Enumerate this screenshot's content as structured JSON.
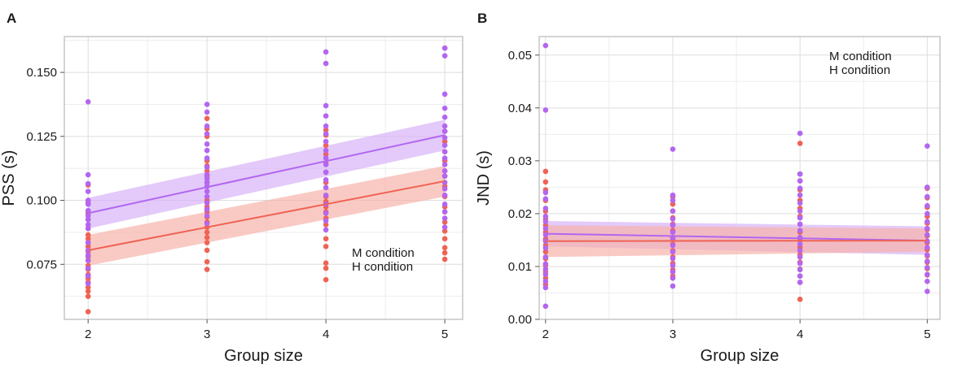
{
  "colors": {
    "m_condition": "#b366f0",
    "h_condition": "#ef6354",
    "m_band": "#d7b4f8",
    "h_band": "#f6b3ab",
    "grid": "#dedede",
    "axis": "#b8b8b8",
    "text": "#1a1a1a"
  },
  "chart_data": [
    {
      "panel_label": "A",
      "type": "scatter",
      "title": "",
      "xlabel": "Group size",
      "ylabel": "PSS (s)",
      "x_ticks": [
        2,
        3,
        4,
        5
      ],
      "y_ticks": [
        0.075,
        0.1,
        0.125,
        0.15
      ],
      "y_tick_labels": [
        "0.075",
        "0.100",
        "0.125",
        "0.150"
      ],
      "xlim": [
        1.8,
        5.15
      ],
      "ylim": [
        0.0535,
        0.164
      ],
      "legend": {
        "position": "bottom-right",
        "entries": [
          "M condition",
          "H condition"
        ]
      },
      "series": [
        {
          "name": "M condition",
          "fit": {
            "x": [
              2,
              5
            ],
            "y": [
              0.095,
              0.1255
            ]
          },
          "ci_low": [
            0.089,
            0.1195
          ],
          "ci_high": [
            0.101,
            0.1315
          ],
          "points": [
            {
              "x": 2,
              "y": [
                0.1385,
                0.11,
                0.1065,
                0.1035,
                0.1,
                0.0985,
                0.096,
                0.094,
                0.0925,
                0.0905,
                0.089,
                0.0835,
                0.0805,
                0.0785,
                0.0765,
                0.0735,
                0.0705,
                0.0675
              ]
            },
            {
              "x": 3,
              "y": [
                0.1375,
                0.1345,
                0.129,
                0.126,
                0.122,
                0.1195,
                0.1165,
                0.113,
                0.11,
                0.1085,
                0.107,
                0.1055,
                0.1035,
                0.1015,
                0.099,
                0.0965,
                0.094,
                0.091
              ]
            },
            {
              "x": 4,
              "y": [
                0.158,
                0.1535,
                0.137,
                0.133,
                0.129,
                0.126,
                0.123,
                0.1195,
                0.1165,
                0.114,
                0.111,
                0.108,
                0.105,
                0.102,
                0.0985,
                0.095,
                0.092,
                0.0885
              ]
            },
            {
              "x": 5,
              "y": [
                0.1595,
                0.1565,
                0.1415,
                0.136,
                0.1325,
                0.129,
                0.127,
                0.1245,
                0.1215,
                0.119,
                0.1165,
                0.114,
                0.1115,
                0.1095,
                0.107,
                0.1045,
                0.102,
                0.0985,
                0.0955,
                0.093,
                0.0895
              ]
            }
          ]
        },
        {
          "name": "H condition",
          "fit": {
            "x": [
              2,
              5
            ],
            "y": [
              0.0805,
              0.1075
            ]
          },
          "ci_low": [
            0.0745,
            0.1015
          ],
          "ci_high": [
            0.0865,
            0.1135
          ],
          "points": [
            {
              "x": 2,
              "y": [
                0.106,
                0.099,
                0.095,
                0.0925,
                0.089,
                0.0865,
                0.085,
                0.0835,
                0.082,
                0.08,
                0.078,
                0.0765,
                0.0745,
                0.073,
                0.071,
                0.0695,
                0.068,
                0.066,
                0.0645,
                0.0625,
                0.0565
              ]
            },
            {
              "x": 3,
              "y": [
                0.132,
                0.128,
                0.125,
                0.1155,
                0.1135,
                0.1115,
                0.1095,
                0.107,
                0.1,
                0.0975,
                0.0955,
                0.0935,
                0.0915,
                0.0895,
                0.0875,
                0.0855,
                0.0835,
                0.0805,
                0.076,
                0.073
              ]
            },
            {
              "x": 4,
              "y": [
                0.1275,
                0.1255,
                0.1215,
                0.118,
                0.1145,
                0.111,
                0.107,
                0.1015,
                0.0995,
                0.0975,
                0.0955,
                0.093,
                0.0905,
                0.085,
                0.082,
                0.0755,
                0.0735,
                0.069
              ]
            },
            {
              "x": 5,
              "y": [
                0.1595,
                0.127,
                0.123,
                0.119,
                0.1155,
                0.1115,
                0.1095,
                0.1055,
                0.1015,
                0.0975,
                0.0955,
                0.0915,
                0.088,
                0.085,
                0.0815,
                0.0795,
                0.077
              ]
            }
          ]
        }
      ]
    },
    {
      "panel_label": "B",
      "type": "scatter",
      "title": "",
      "xlabel": "Group size",
      "ylabel": "JND (s)",
      "x_ticks": [
        2,
        3,
        4,
        5
      ],
      "y_ticks": [
        0.0,
        0.01,
        0.02,
        0.03,
        0.04,
        0.05
      ],
      "y_tick_labels": [
        "0.00",
        "0.01",
        "0.02",
        "0.03",
        "0.04",
        "0.05"
      ],
      "xlim": [
        1.95,
        5.1
      ],
      "ylim": [
        0.0,
        0.0535
      ],
      "legend": {
        "position": "top-right",
        "entries": [
          "M condition",
          "H condition"
        ]
      },
      "series": [
        {
          "name": "M condition",
          "fit": {
            "x": [
              2,
              5
            ],
            "y": [
              0.0162,
              0.0149
            ]
          },
          "ci_low": [
            0.0138,
            0.0122
          ],
          "ci_high": [
            0.0186,
            0.0176
          ],
          "points": [
            {
              "x": 2,
              "y": [
                0.0518,
                0.0396,
                0.024,
                0.0228,
                0.021,
                0.0195,
                0.0185,
                0.0172,
                0.016,
                0.0148,
                0.0135,
                0.0118,
                0.0105,
                0.0095,
                0.0085,
                0.0072,
                0.006,
                0.0025
              ]
            },
            {
              "x": 3,
              "y": [
                0.0322,
                0.0235,
                0.0225,
                0.0205,
                0.019,
                0.0178,
                0.0165,
                0.0152,
                0.014,
                0.0128,
                0.0115,
                0.0102,
                0.009,
                0.0078,
                0.0063
              ]
            },
            {
              "x": 4,
              "y": [
                0.0352,
                0.0275,
                0.0262,
                0.0248,
                0.0235,
                0.022,
                0.0205,
                0.0192,
                0.018,
                0.0168,
                0.0155,
                0.0142,
                0.013,
                0.0118,
                0.0106,
                0.0094,
                0.0082,
                0.007
              ]
            },
            {
              "x": 5,
              "y": [
                0.0328,
                0.025,
                0.0232,
                0.0215,
                0.02,
                0.0185,
                0.0172,
                0.016,
                0.0148,
                0.0136,
                0.0122,
                0.011,
                0.0098,
                0.0085,
                0.0072,
                0.0053
              ]
            }
          ]
        },
        {
          "name": "H condition",
          "fit": {
            "x": [
              2,
              5
            ],
            "y": [
              0.0148,
              0.0149
            ]
          },
          "ci_low": [
            0.0118,
            0.0128
          ],
          "ci_high": [
            0.0178,
            0.0172
          ],
          "points": [
            {
              "x": 2,
              "y": [
                0.028,
                0.026,
                0.0245,
                0.0225,
                0.0205,
                0.019,
                0.0178,
                0.0165,
                0.0152,
                0.014,
                0.0128,
                0.0115,
                0.0102,
                0.009,
                0.0078,
                0.0066
              ]
            },
            {
              "x": 3,
              "y": [
                0.0232,
                0.0218,
                0.0205,
                0.0192,
                0.018,
                0.0168,
                0.0155,
                0.0142,
                0.013,
                0.0118,
                0.0106,
                0.0094,
                0.0082
              ]
            },
            {
              "x": 4,
              "y": [
                0.0333,
                0.0275,
                0.0262,
                0.0245,
                0.0225,
                0.021,
                0.0195,
                0.018,
                0.0165,
                0.015,
                0.0136,
                0.0122,
                0.0108,
                0.0095,
                0.0082,
                0.007,
                0.0038
              ]
            },
            {
              "x": 5,
              "y": [
                0.0248,
                0.023,
                0.0212,
                0.0195,
                0.0182,
                0.017,
                0.0158,
                0.0145,
                0.0132,
                0.012,
                0.0108,
                0.0096,
                0.0084
              ]
            }
          ]
        }
      ]
    }
  ]
}
